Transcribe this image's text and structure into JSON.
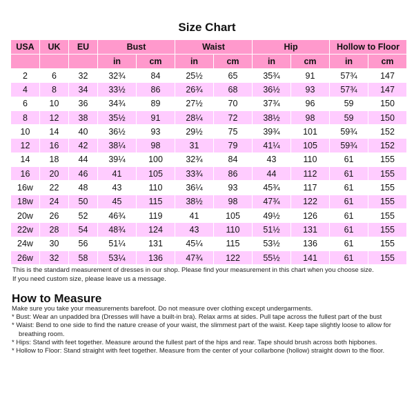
{
  "title": "Size Chart",
  "headers": [
    "USA",
    "UK",
    "EU",
    "Bust",
    "Waist",
    "Hip",
    "Hollow to Floor"
  ],
  "units": [
    "in",
    "cm"
  ],
  "rows": [
    [
      "2",
      "6",
      "32",
      "32¾",
      "84",
      "25½",
      "65",
      "35¾",
      "91",
      "57¾",
      "147"
    ],
    [
      "4",
      "8",
      "34",
      "33½",
      "86",
      "26¾",
      "68",
      "36½",
      "93",
      "57¾",
      "147"
    ],
    [
      "6",
      "10",
      "36",
      "34¾",
      "89",
      "27½",
      "70",
      "37¾",
      "96",
      "59",
      "150"
    ],
    [
      "8",
      "12",
      "38",
      "35½",
      "91",
      "28¼",
      "72",
      "38½",
      "98",
      "59",
      "150"
    ],
    [
      "10",
      "14",
      "40",
      "36½",
      "93",
      "29½",
      "75",
      "39¾",
      "101",
      "59¾",
      "152"
    ],
    [
      "12",
      "16",
      "42",
      "38¼",
      "98",
      "31",
      "79",
      "41¼",
      "105",
      "59¾",
      "152"
    ],
    [
      "14",
      "18",
      "44",
      "39¼",
      "100",
      "32¾",
      "84",
      "43",
      "110",
      "61",
      "155"
    ],
    [
      "16",
      "20",
      "46",
      "41",
      "105",
      "33¾",
      "86",
      "44",
      "112",
      "61",
      "155"
    ],
    [
      "16w",
      "22",
      "48",
      "43",
      "110",
      "36¼",
      "93",
      "45¾",
      "117",
      "61",
      "155"
    ],
    [
      "18w",
      "24",
      "50",
      "45",
      "115",
      "38½",
      "98",
      "47¾",
      "122",
      "61",
      "155"
    ],
    [
      "20w",
      "26",
      "52",
      "46¾",
      "119",
      "41",
      "105",
      "49½",
      "126",
      "61",
      "155"
    ],
    [
      "22w",
      "28",
      "54",
      "48¾",
      "124",
      "43",
      "110",
      "51½",
      "131",
      "61",
      "155"
    ],
    [
      "24w",
      "30",
      "56",
      "51¼",
      "131",
      "45¼",
      "115",
      "53½",
      "136",
      "61",
      "155"
    ],
    [
      "26w",
      "32",
      "58",
      "53¼",
      "136",
      "47¾",
      "122",
      "55½",
      "141",
      "61",
      "155"
    ]
  ],
  "note": [
    "This is the standard measurement of dresses in our shop. Please find your measurement in this chart when you choose size.",
    "If you need custom size, please leave us a message."
  ],
  "how_title": "How to Measure",
  "how_lines": [
    "Make sure you take your measurements barefoot. Do not measure over clothing except undergarments.",
    "* Bust: Wear an unpadded bra (Dresses will have a built-in bra). Relax arms at sides. Pull tape across the fullest part of the bust",
    "* Waist: Bend to one side to find the nature crease of your waist, the slimmest part of the waist. Keep tape slightly loose to allow for",
    "breathing room.",
    "* Hips: Stand with feet together. Measure around the fullest part of the hips and rear. Tape should brush across both hipbones.",
    "* Hollow to Floor: Stand straight with feet together. Measure from the center of your collarbone (hollow) straight down to the floor."
  ],
  "colors": {
    "header": "#ff99cc",
    "alt_row": "#ffccff"
  }
}
